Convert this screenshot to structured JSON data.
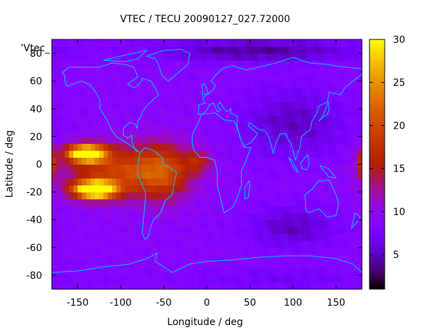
{
  "chart_data": {
    "type": "heatmap",
    "title": "VTEC / TECU 20090127_027.72000",
    "xlabel": "Longitude / deg",
    "ylabel": "Latitude / deg",
    "legend_label": "'Vtec_",
    "xlim": [
      -180,
      180
    ],
    "ylim": [
      -90,
      90
    ],
    "x_ticks": [
      -150,
      -100,
      -50,
      0,
      50,
      100,
      150
    ],
    "y_ticks": [
      -80,
      -60,
      -40,
      -20,
      0,
      20,
      40,
      60,
      80
    ],
    "colorbar": {
      "range": [
        1,
        30
      ],
      "ticks": [
        5,
        10,
        15,
        20,
        25,
        30
      ]
    },
    "grid_resolution_deg": 5,
    "background_value": 9,
    "features": [
      {
        "name": "pacific-crest-north",
        "lon": -140,
        "lat": 8,
        "peak": 26,
        "width_lon": 22,
        "width_lat": 6
      },
      {
        "name": "pacific-crest-south",
        "lon": -130,
        "lat": -18,
        "peak": 28,
        "width_lon": 24,
        "width_lat": 6
      },
      {
        "name": "equatorial-anomaly-central",
        "lon": -100,
        "lat": -5,
        "peak": 10,
        "width_lon": 60,
        "width_lat": 18
      },
      {
        "name": "south-america-band",
        "lon": -50,
        "lat": -5,
        "peak": 8,
        "width_lon": 30,
        "width_lat": 20
      },
      {
        "name": "atlantic-tongue",
        "lon": -10,
        "lat": 2,
        "peak": 6,
        "width_lon": 15,
        "width_lat": 8
      },
      {
        "name": "dateline-east-edge",
        "lon": 180,
        "lat": 0,
        "peak": 8,
        "width_lon": 6,
        "width_lat": 10
      },
      {
        "name": "night-depletion-asia",
        "lon": 100,
        "lat": 30,
        "peak": -4,
        "width_lon": 60,
        "width_lat": 25
      },
      {
        "name": "night-depletion-south-indian",
        "lon": 100,
        "lat": -45,
        "peak": -4,
        "width_lon": 50,
        "width_lat": 15
      },
      {
        "name": "polar-north",
        "lon": 60,
        "lat": 82,
        "peak": -5,
        "width_lon": 120,
        "width_lat": 8
      },
      {
        "name": "polar-south",
        "lon": 90,
        "lat": -82,
        "peak": -2,
        "width_lon": 120,
        "width_lat": 8
      }
    ],
    "coastlines": [
      {
        "name": "north-america",
        "points": [
          [
            -168,
            66
          ],
          [
            -160,
            70
          ],
          [
            -140,
            70
          ],
          [
            -125,
            70
          ],
          [
            -110,
            73
          ],
          [
            -95,
            72
          ],
          [
            -85,
            70
          ],
          [
            -80,
            63
          ],
          [
            -92,
            58
          ],
          [
            -85,
            55
          ],
          [
            -78,
            58
          ],
          [
            -75,
            62
          ],
          [
            -65,
            60
          ],
          [
            -60,
            55
          ],
          [
            -56,
            50
          ],
          [
            -65,
            45
          ],
          [
            -70,
            42
          ],
          [
            -75,
            38
          ],
          [
            -76,
            35
          ],
          [
            -80,
            31
          ],
          [
            -81,
            26
          ],
          [
            -83,
            29
          ],
          [
            -90,
            30
          ],
          [
            -97,
            26
          ],
          [
            -97,
            21
          ],
          [
            -92,
            19
          ],
          [
            -87,
            21
          ],
          [
            -87,
            16
          ],
          [
            -83,
            10
          ],
          [
            -79,
            9
          ],
          [
            -85,
            12
          ],
          [
            -92,
            15
          ],
          [
            -105,
            20
          ],
          [
            -110,
            24
          ],
          [
            -115,
            31
          ],
          [
            -118,
            34
          ],
          [
            -124,
            40
          ],
          [
            -124,
            46
          ],
          [
            -128,
            51
          ],
          [
            -135,
            57
          ],
          [
            -145,
            60
          ],
          [
            -155,
            58
          ],
          [
            -162,
            56
          ],
          [
            -165,
            60
          ],
          [
            -165,
            64
          ],
          [
            -168,
            66
          ]
        ]
      },
      {
        "name": "south-america",
        "points": [
          [
            -78,
            8
          ],
          [
            -72,
            12
          ],
          [
            -62,
            10
          ],
          [
            -52,
            5
          ],
          [
            -50,
            0
          ],
          [
            -44,
            -2
          ],
          [
            -35,
            -6
          ],
          [
            -38,
            -13
          ],
          [
            -40,
            -22
          ],
          [
            -48,
            -26
          ],
          [
            -53,
            -34
          ],
          [
            -58,
            -38
          ],
          [
            -62,
            -40
          ],
          [
            -65,
            -45
          ],
          [
            -68,
            -52
          ],
          [
            -72,
            -54
          ],
          [
            -75,
            -50
          ],
          [
            -74,
            -42
          ],
          [
            -72,
            -30
          ],
          [
            -71,
            -20
          ],
          [
            -76,
            -14
          ],
          [
            -81,
            -6
          ],
          [
            -80,
            0
          ],
          [
            -78,
            8
          ]
        ]
      },
      {
        "name": "greenland",
        "points": [
          [
            -50,
            82
          ],
          [
            -30,
            83
          ],
          [
            -20,
            80
          ],
          [
            -22,
            72
          ],
          [
            -35,
            65
          ],
          [
            -45,
            60
          ],
          [
            -52,
            64
          ],
          [
            -55,
            70
          ],
          [
            -60,
            76
          ],
          [
            -70,
            78
          ],
          [
            -50,
            82
          ]
        ]
      },
      {
        "name": "africa",
        "points": [
          [
            -17,
            21
          ],
          [
            -10,
            30
          ],
          [
            -6,
            36
          ],
          [
            10,
            37
          ],
          [
            20,
            32
          ],
          [
            32,
            31
          ],
          [
            34,
            28
          ],
          [
            43,
            12
          ],
          [
            51,
            12
          ],
          [
            45,
            2
          ],
          [
            40,
            -5
          ],
          [
            40,
            -15
          ],
          [
            35,
            -25
          ],
          [
            30,
            -31
          ],
          [
            20,
            -35
          ],
          [
            18,
            -30
          ],
          [
            12,
            -15
          ],
          [
            12,
            -5
          ],
          [
            9,
            3
          ],
          [
            0,
            5
          ],
          [
            -8,
            5
          ],
          [
            -15,
            10
          ],
          [
            -17,
            15
          ],
          [
            -17,
            21
          ]
        ]
      },
      {
        "name": "eurasia",
        "points": [
          [
            -10,
            36
          ],
          [
            -9,
            43
          ],
          [
            -2,
            44
          ],
          [
            -5,
            48
          ],
          [
            2,
            51
          ],
          [
            8,
            54
          ],
          [
            10,
            57
          ],
          [
            5,
            60
          ],
          [
            10,
            64
          ],
          [
            18,
            69
          ],
          [
            30,
            71
          ],
          [
            45,
            68
          ],
          [
            60,
            70
          ],
          [
            80,
            73
          ],
          [
            100,
            77
          ],
          [
            120,
            73
          ],
          [
            140,
            72
          ],
          [
            160,
            70
          ],
          [
            180,
            69
          ],
          [
            180,
            65
          ],
          [
            170,
            60
          ],
          [
            160,
            55
          ],
          [
            155,
            50
          ],
          [
            142,
            52
          ],
          [
            140,
            45
          ],
          [
            130,
            42
          ],
          [
            128,
            37
          ],
          [
            122,
            31
          ],
          [
            120,
            25
          ],
          [
            110,
            20
          ],
          [
            108,
            12
          ],
          [
            103,
            3
          ],
          [
            100,
            10
          ],
          [
            98,
            15
          ],
          [
            95,
            17
          ],
          [
            92,
            22
          ],
          [
            85,
            22
          ],
          [
            80,
            15
          ],
          [
            77,
            8
          ],
          [
            73,
            18
          ],
          [
            68,
            24
          ],
          [
            60,
            25
          ],
          [
            56,
            27
          ],
          [
            50,
            30
          ],
          [
            48,
            28
          ],
          [
            55,
            24
          ],
          [
            59,
            22
          ],
          [
            52,
            16
          ],
          [
            43,
            13
          ],
          [
            38,
            20
          ],
          [
            35,
            28
          ],
          [
            35,
            35
          ],
          [
            27,
            37
          ],
          [
            28,
            40
          ],
          [
            23,
            38
          ],
          [
            20,
            40
          ],
          [
            15,
            45
          ],
          [
            12,
            42
          ],
          [
            16,
            39
          ],
          [
            12,
            38
          ],
          [
            8,
            44
          ],
          [
            3,
            43
          ],
          [
            0,
            39
          ],
          [
            -5,
            36
          ],
          [
            -10,
            36
          ]
        ]
      },
      {
        "name": "australia",
        "points": [
          [
            114,
            -22
          ],
          [
            122,
            -18
          ],
          [
            130,
            -12
          ],
          [
            137,
            -12
          ],
          [
            141,
            -11
          ],
          [
            145,
            -15
          ],
          [
            150,
            -22
          ],
          [
            153,
            -28
          ],
          [
            150,
            -37
          ],
          [
            140,
            -38
          ],
          [
            135,
            -35
          ],
          [
            130,
            -32
          ],
          [
            118,
            -35
          ],
          [
            115,
            -33
          ],
          [
            114,
            -22
          ]
        ]
      },
      {
        "name": "antarctica",
        "points": [
          [
            -180,
            -78
          ],
          [
            -150,
            -77
          ],
          [
            -120,
            -74
          ],
          [
            -90,
            -72
          ],
          [
            -70,
            -68
          ],
          [
            -58,
            -64
          ],
          [
            -60,
            -70
          ],
          [
            -40,
            -78
          ],
          [
            -20,
            -72
          ],
          [
            0,
            -70
          ],
          [
            30,
            -69
          ],
          [
            60,
            -67
          ],
          [
            90,
            -66
          ],
          [
            120,
            -66
          ],
          [
            150,
            -68
          ],
          [
            170,
            -72
          ],
          [
            180,
            -78
          ]
        ]
      },
      {
        "name": "britain",
        "points": [
          [
            -5,
            50
          ],
          [
            2,
            51
          ],
          [
            0,
            54
          ],
          [
            -3,
            58
          ],
          [
            -6,
            57
          ],
          [
            -5,
            54
          ],
          [
            -5,
            50
          ]
        ]
      },
      {
        "name": "japan",
        "points": [
          [
            130,
            31
          ],
          [
            135,
            34
          ],
          [
            140,
            36
          ],
          [
            142,
            40
          ],
          [
            141,
            45
          ],
          [
            138,
            40
          ],
          [
            135,
            35
          ],
          [
            130,
            31
          ]
        ]
      },
      {
        "name": "madagascar",
        "points": [
          [
            44,
            -25
          ],
          [
            48,
            -24
          ],
          [
            50,
            -15
          ],
          [
            49,
            -12
          ],
          [
            44,
            -17
          ],
          [
            44,
            -25
          ]
        ]
      },
      {
        "name": "borneo",
        "points": [
          [
            109,
            1
          ],
          [
            117,
            7
          ],
          [
            119,
            1
          ],
          [
            116,
            -4
          ],
          [
            110,
            -3
          ],
          [
            109,
            1
          ]
        ]
      },
      {
        "name": "sumatra",
        "points": [
          [
            95,
            5
          ],
          [
            100,
            2
          ],
          [
            106,
            -6
          ],
          [
            102,
            -4
          ],
          [
            95,
            5
          ]
        ]
      },
      {
        "name": "new-guinea",
        "points": [
          [
            131,
            -1
          ],
          [
            141,
            -3
          ],
          [
            150,
            -10
          ],
          [
            141,
            -9
          ],
          [
            131,
            -1
          ]
        ]
      },
      {
        "name": "new-zealand",
        "points": [
          [
            172,
            -35
          ],
          [
            178,
            -38
          ],
          [
            174,
            -42
          ],
          [
            168,
            -46
          ],
          [
            172,
            -35
          ]
        ]
      },
      {
        "name": "canadian-arctic",
        "points": [
          [
            -120,
            75
          ],
          [
            -100,
            78
          ],
          [
            -85,
            80
          ],
          [
            -70,
            82
          ],
          [
            -80,
            76
          ],
          [
            -95,
            74
          ],
          [
            -120,
            75
          ]
        ]
      }
    ]
  }
}
